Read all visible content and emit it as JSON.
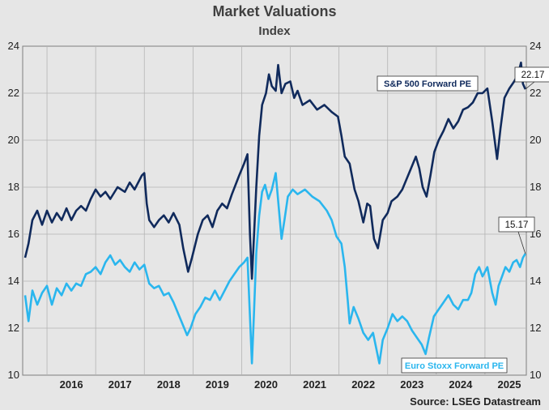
{
  "chart_data": {
    "type": "line",
    "title": "Market Valuations",
    "subtitle": "Index",
    "source": "Source: LSEG Datastream",
    "x_range": [
      2015.5,
      2025.85
    ],
    "ylim": [
      10,
      24
    ],
    "y_ticks": [
      10,
      12,
      14,
      16,
      18,
      20,
      22,
      24
    ],
    "x_ticks": [
      "2016",
      "2017",
      "2018",
      "2019",
      "2020",
      "2021",
      "2022",
      "2023",
      "2024",
      "2025"
    ],
    "grid": true,
    "series": [
      {
        "name": "S&P 500 Forward PE",
        "color": "#102a5c",
        "last_value_label": "22.17",
        "points": [
          [
            2015.55,
            15.0
          ],
          [
            2015.62,
            15.6
          ],
          [
            2015.7,
            16.6
          ],
          [
            2015.8,
            17.0
          ],
          [
            2015.9,
            16.4
          ],
          [
            2016.0,
            17.0
          ],
          [
            2016.1,
            16.5
          ],
          [
            2016.2,
            16.9
          ],
          [
            2016.3,
            16.6
          ],
          [
            2016.4,
            17.1
          ],
          [
            2016.5,
            16.6
          ],
          [
            2016.6,
            17.0
          ],
          [
            2016.7,
            17.2
          ],
          [
            2016.8,
            17.0
          ],
          [
            2016.9,
            17.5
          ],
          [
            2017.0,
            17.9
          ],
          [
            2017.1,
            17.6
          ],
          [
            2017.2,
            17.8
          ],
          [
            2017.3,
            17.5
          ],
          [
            2017.45,
            18.0
          ],
          [
            2017.6,
            17.8
          ],
          [
            2017.7,
            18.2
          ],
          [
            2017.8,
            17.9
          ],
          [
            2017.95,
            18.5
          ],
          [
            2018.0,
            18.6
          ],
          [
            2018.05,
            17.3
          ],
          [
            2018.1,
            16.6
          ],
          [
            2018.2,
            16.3
          ],
          [
            2018.3,
            16.6
          ],
          [
            2018.4,
            16.8
          ],
          [
            2018.5,
            16.5
          ],
          [
            2018.6,
            16.9
          ],
          [
            2018.72,
            16.4
          ],
          [
            2018.8,
            15.4
          ],
          [
            2018.9,
            14.4
          ],
          [
            2018.98,
            15.0
          ],
          [
            2019.1,
            16.0
          ],
          [
            2019.2,
            16.6
          ],
          [
            2019.3,
            16.8
          ],
          [
            2019.4,
            16.3
          ],
          [
            2019.5,
            17.0
          ],
          [
            2019.6,
            17.3
          ],
          [
            2019.7,
            17.1
          ],
          [
            2019.8,
            17.7
          ],
          [
            2019.95,
            18.5
          ],
          [
            2020.05,
            19.0
          ],
          [
            2020.12,
            19.4
          ],
          [
            2020.17,
            16.0
          ],
          [
            2020.21,
            14.1
          ],
          [
            2020.25,
            15.8
          ],
          [
            2020.3,
            18.0
          ],
          [
            2020.36,
            20.2
          ],
          [
            2020.42,
            21.5
          ],
          [
            2020.5,
            22.0
          ],
          [
            2020.56,
            22.8
          ],
          [
            2020.62,
            22.3
          ],
          [
            2020.7,
            22.1
          ],
          [
            2020.75,
            23.2
          ],
          [
            2020.82,
            22.0
          ],
          [
            2020.9,
            22.4
          ],
          [
            2021.0,
            22.5
          ],
          [
            2021.08,
            21.8
          ],
          [
            2021.15,
            22.1
          ],
          [
            2021.25,
            21.5
          ],
          [
            2021.4,
            21.7
          ],
          [
            2021.55,
            21.3
          ],
          [
            2021.7,
            21.5
          ],
          [
            2021.85,
            21.2
          ],
          [
            2021.98,
            21.0
          ],
          [
            2022.05,
            20.2
          ],
          [
            2022.12,
            19.3
          ],
          [
            2022.22,
            19.0
          ],
          [
            2022.32,
            17.9
          ],
          [
            2022.4,
            17.4
          ],
          [
            2022.5,
            16.5
          ],
          [
            2022.58,
            17.3
          ],
          [
            2022.64,
            17.2
          ],
          [
            2022.72,
            15.8
          ],
          [
            2022.8,
            15.4
          ],
          [
            2022.9,
            16.6
          ],
          [
            2023.0,
            16.9
          ],
          [
            2023.08,
            17.4
          ],
          [
            2023.2,
            17.6
          ],
          [
            2023.3,
            17.9
          ],
          [
            2023.4,
            18.4
          ],
          [
            2023.5,
            18.9
          ],
          [
            2023.58,
            19.3
          ],
          [
            2023.65,
            18.8
          ],
          [
            2023.72,
            18.0
          ],
          [
            2023.8,
            17.6
          ],
          [
            2023.88,
            18.5
          ],
          [
            2023.96,
            19.5
          ],
          [
            2024.05,
            20.0
          ],
          [
            2024.15,
            20.4
          ],
          [
            2024.25,
            20.9
          ],
          [
            2024.35,
            20.5
          ],
          [
            2024.45,
            20.8
          ],
          [
            2024.55,
            21.3
          ],
          [
            2024.65,
            21.4
          ],
          [
            2024.75,
            21.6
          ],
          [
            2024.85,
            22.0
          ],
          [
            2024.95,
            22.0
          ],
          [
            2025.05,
            22.2
          ],
          [
            2025.15,
            20.8
          ],
          [
            2025.25,
            19.2
          ],
          [
            2025.32,
            20.5
          ],
          [
            2025.4,
            21.8
          ],
          [
            2025.5,
            22.2
          ],
          [
            2025.6,
            22.5
          ],
          [
            2025.68,
            22.8
          ],
          [
            2025.74,
            23.3
          ],
          [
            2025.78,
            22.4
          ],
          [
            2025.83,
            22.17
          ]
        ]
      },
      {
        "name": "Euro Stoxx Forward PE",
        "color": "#2ab6ee",
        "last_value_label": "15.17",
        "points": [
          [
            2015.55,
            13.4
          ],
          [
            2015.62,
            12.3
          ],
          [
            2015.7,
            13.6
          ],
          [
            2015.8,
            13.0
          ],
          [
            2015.9,
            13.5
          ],
          [
            2016.0,
            13.8
          ],
          [
            2016.1,
            13.0
          ],
          [
            2016.2,
            13.7
          ],
          [
            2016.3,
            13.4
          ],
          [
            2016.4,
            13.9
          ],
          [
            2016.5,
            13.6
          ],
          [
            2016.6,
            13.9
          ],
          [
            2016.7,
            13.8
          ],
          [
            2016.8,
            14.3
          ],
          [
            2016.9,
            14.4
          ],
          [
            2017.0,
            14.6
          ],
          [
            2017.1,
            14.3
          ],
          [
            2017.2,
            14.8
          ],
          [
            2017.3,
            15.1
          ],
          [
            2017.4,
            14.7
          ],
          [
            2017.5,
            14.9
          ],
          [
            2017.6,
            14.6
          ],
          [
            2017.7,
            14.4
          ],
          [
            2017.8,
            14.8
          ],
          [
            2017.9,
            14.5
          ],
          [
            2018.0,
            14.7
          ],
          [
            2018.1,
            13.9
          ],
          [
            2018.2,
            13.7
          ],
          [
            2018.3,
            13.8
          ],
          [
            2018.4,
            13.4
          ],
          [
            2018.5,
            13.5
          ],
          [
            2018.6,
            13.1
          ],
          [
            2018.7,
            12.6
          ],
          [
            2018.8,
            12.1
          ],
          [
            2018.88,
            11.7
          ],
          [
            2018.95,
            12.0
          ],
          [
            2019.05,
            12.6
          ],
          [
            2019.15,
            12.9
          ],
          [
            2019.25,
            13.3
          ],
          [
            2019.35,
            13.2
          ],
          [
            2019.45,
            13.6
          ],
          [
            2019.55,
            13.2
          ],
          [
            2019.65,
            13.6
          ],
          [
            2019.75,
            14.0
          ],
          [
            2019.85,
            14.3
          ],
          [
            2019.95,
            14.6
          ],
          [
            2020.05,
            14.8
          ],
          [
            2020.12,
            15.0
          ],
          [
            2020.17,
            12.5
          ],
          [
            2020.21,
            10.5
          ],
          [
            2020.25,
            12.5
          ],
          [
            2020.3,
            15.2
          ],
          [
            2020.36,
            16.8
          ],
          [
            2020.42,
            17.8
          ],
          [
            2020.48,
            18.1
          ],
          [
            2020.55,
            17.5
          ],
          [
            2020.62,
            17.9
          ],
          [
            2020.7,
            18.6
          ],
          [
            2020.76,
            17.2
          ],
          [
            2020.82,
            15.8
          ],
          [
            2020.88,
            16.6
          ],
          [
            2020.95,
            17.6
          ],
          [
            2021.05,
            17.9
          ],
          [
            2021.15,
            17.7
          ],
          [
            2021.3,
            17.9
          ],
          [
            2021.45,
            17.6
          ],
          [
            2021.6,
            17.4
          ],
          [
            2021.75,
            17.0
          ],
          [
            2021.85,
            16.6
          ],
          [
            2021.95,
            15.9
          ],
          [
            2022.05,
            15.6
          ],
          [
            2022.12,
            14.6
          ],
          [
            2022.18,
            13.2
          ],
          [
            2022.22,
            12.2
          ],
          [
            2022.3,
            12.9
          ],
          [
            2022.4,
            12.4
          ],
          [
            2022.5,
            11.8
          ],
          [
            2022.6,
            11.5
          ],
          [
            2022.7,
            11.8
          ],
          [
            2022.78,
            11.0
          ],
          [
            2022.83,
            10.5
          ],
          [
            2022.9,
            11.5
          ],
          [
            2023.0,
            12.0
          ],
          [
            2023.1,
            12.6
          ],
          [
            2023.2,
            12.3
          ],
          [
            2023.3,
            12.5
          ],
          [
            2023.4,
            12.3
          ],
          [
            2023.5,
            11.9
          ],
          [
            2023.6,
            11.6
          ],
          [
            2023.7,
            11.3
          ],
          [
            2023.78,
            10.9
          ],
          [
            2023.85,
            11.6
          ],
          [
            2023.95,
            12.5
          ],
          [
            2024.05,
            12.8
          ],
          [
            2024.15,
            13.1
          ],
          [
            2024.25,
            13.4
          ],
          [
            2024.35,
            13.0
          ],
          [
            2024.45,
            12.8
          ],
          [
            2024.55,
            13.2
          ],
          [
            2024.65,
            13.2
          ],
          [
            2024.72,
            13.5
          ],
          [
            2024.8,
            14.3
          ],
          [
            2024.88,
            14.6
          ],
          [
            2024.95,
            14.2
          ],
          [
            2025.05,
            14.6
          ],
          [
            2025.15,
            13.5
          ],
          [
            2025.22,
            13.0
          ],
          [
            2025.28,
            13.8
          ],
          [
            2025.35,
            14.2
          ],
          [
            2025.42,
            14.6
          ],
          [
            2025.5,
            14.4
          ],
          [
            2025.58,
            14.8
          ],
          [
            2025.65,
            14.9
          ],
          [
            2025.72,
            14.6
          ],
          [
            2025.78,
            15.0
          ],
          [
            2025.83,
            15.17
          ]
        ]
      }
    ]
  }
}
